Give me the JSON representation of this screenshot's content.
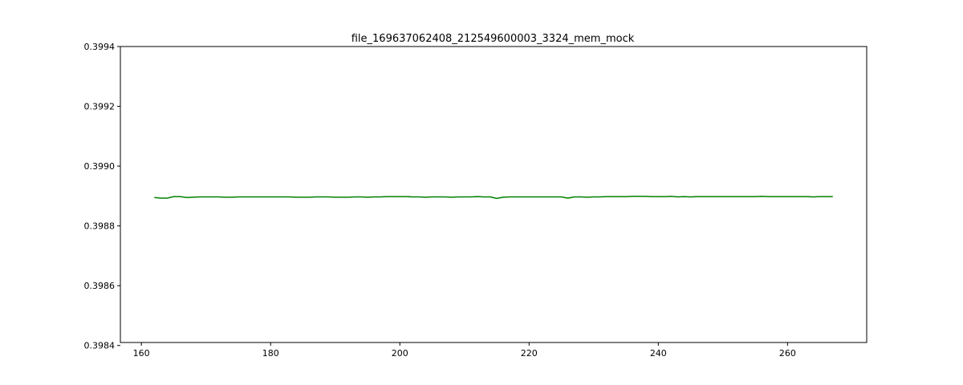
{
  "chart_data": {
    "type": "line",
    "title": "file_169637062408_212549600003_3324_mem_mock",
    "xlabel": "",
    "ylabel": "",
    "xlim": [
      156.75,
      272.25
    ],
    "ylim": [
      0.39841,
      0.3994
    ],
    "x_ticks": [
      160,
      180,
      200,
      220,
      240,
      260
    ],
    "y_ticks": [
      0.3984,
      0.3986,
      0.3988,
      0.399,
      0.3992,
      0.3994
    ],
    "y_tick_labels": [
      "0.3984",
      "0.3986",
      "0.3988",
      "0.3990",
      "0.3992",
      "0.3994"
    ],
    "grid": false,
    "series": [
      {
        "color": "#008000",
        "x": [
          162,
          163,
          164,
          165,
          166,
          167,
          168,
          169,
          170,
          171,
          172,
          173,
          174,
          175,
          176,
          177,
          178,
          179,
          180,
          181,
          182,
          183,
          184,
          185,
          186,
          187,
          188,
          189,
          190,
          191,
          192,
          193,
          194,
          195,
          196,
          197,
          198,
          199,
          200,
          201,
          202,
          203,
          204,
          205,
          206,
          207,
          208,
          209,
          210,
          211,
          212,
          213,
          214,
          215,
          216,
          217,
          218,
          219,
          220,
          221,
          222,
          223,
          224,
          225,
          226,
          227,
          228,
          229,
          230,
          231,
          232,
          233,
          234,
          235,
          236,
          237,
          238,
          239,
          240,
          241,
          242,
          243,
          244,
          245,
          246,
          247,
          248,
          249,
          250,
          251,
          252,
          253,
          254,
          255,
          256,
          257,
          258,
          259,
          260,
          261,
          262,
          263,
          264,
          265,
          266,
          267
        ],
        "y": [
          0.398895,
          0.398893,
          0.398893,
          0.398898,
          0.398898,
          0.398895,
          0.398896,
          0.398897,
          0.398897,
          0.398897,
          0.398897,
          0.398896,
          0.398896,
          0.398897,
          0.398897,
          0.398897,
          0.398897,
          0.398897,
          0.398897,
          0.398897,
          0.398897,
          0.398897,
          0.398896,
          0.398896,
          0.398896,
          0.398897,
          0.398897,
          0.398897,
          0.398896,
          0.398896,
          0.398896,
          0.398897,
          0.398897,
          0.398896,
          0.398897,
          0.398897,
          0.398898,
          0.398898,
          0.398898,
          0.398898,
          0.398897,
          0.398897,
          0.398896,
          0.398897,
          0.398897,
          0.398897,
          0.398896,
          0.398897,
          0.398897,
          0.398897,
          0.398898,
          0.398897,
          0.398897,
          0.398892,
          0.398896,
          0.398897,
          0.398897,
          0.398897,
          0.398897,
          0.398897,
          0.398897,
          0.398897,
          0.398897,
          0.398897,
          0.398893,
          0.398897,
          0.398897,
          0.398896,
          0.398897,
          0.398897,
          0.398898,
          0.398898,
          0.398898,
          0.398898,
          0.398899,
          0.398899,
          0.398899,
          0.398898,
          0.398898,
          0.398898,
          0.398899,
          0.398897,
          0.398898,
          0.398897,
          0.398898,
          0.398898,
          0.398898,
          0.398898,
          0.398898,
          0.398898,
          0.398898,
          0.398898,
          0.398898,
          0.398898,
          0.398899,
          0.398898,
          0.398898,
          0.398898,
          0.398898,
          0.398898,
          0.398898,
          0.398898,
          0.398897,
          0.398898,
          0.398898,
          0.398898
        ]
      }
    ]
  }
}
